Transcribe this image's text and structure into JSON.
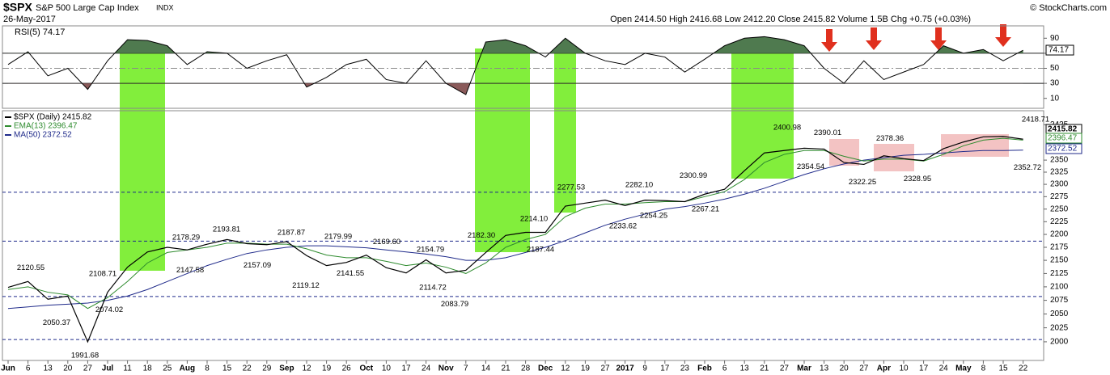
{
  "header": {
    "symbol": "$SPX",
    "name": "S&P 500 Large Cap Index",
    "exchange": "INDX",
    "date": "26-May-2017",
    "quote": "Open 2414.50  High 2416.68  Low 2412.20  Close 2415.82  Volume 1.5B  Chg +0.75 (+0.03%)",
    "credit": "© StockCharts.com"
  },
  "chart_data": [
    {
      "type": "line",
      "title": "RSI(5) 74.17",
      "color": "#000000",
      "ylim": [
        0,
        100
      ],
      "yticks": [
        10,
        30,
        50,
        70,
        90
      ],
      "reference_lines": [
        30,
        50,
        70
      ],
      "overbought_color": "#4f7a4f",
      "oversold_color": "#8a5a5a",
      "last_value": 74.17,
      "values": [
        55,
        72,
        40,
        50,
        22,
        60,
        88,
        87,
        80,
        55,
        72,
        70,
        50,
        60,
        68,
        25,
        38,
        55,
        62,
        35,
        30,
        60,
        30,
        15,
        85,
        88,
        80,
        65,
        90,
        70,
        60,
        55,
        70,
        65,
        45,
        62,
        80,
        90,
        92,
        88,
        80,
        50,
        30,
        60,
        35,
        45,
        55,
        80,
        70,
        75,
        60,
        74
      ]
    },
    {
      "type": "line",
      "log_scale": true,
      "ylim": [
        1970,
        2450
      ],
      "yticks": [
        2000,
        2025,
        2050,
        2075,
        2100,
        2125,
        2150,
        2175,
        2200,
        2225,
        2250,
        2275,
        2300,
        2325,
        2350,
        2425
      ],
      "categories": [
        "Jun",
        "6",
        "13",
        "20",
        "27",
        "Jul",
        "11",
        "18",
        "25",
        "Aug",
        "8",
        "15",
        "22",
        "29",
        "Sep",
        "12",
        "19",
        "26",
        "Oct",
        "10",
        "17",
        "24",
        "Nov",
        "7",
        "14",
        "21",
        "28",
        "Dec",
        "12",
        "19",
        "27",
        "2017",
        "9",
        "17",
        "23",
        "Feb",
        "6",
        "13",
        "21",
        "27",
        "Mar",
        "13",
        "20",
        "27",
        "Apr",
        "10",
        "17",
        "24",
        "May",
        "8",
        "15",
        "22"
      ],
      "series": [
        {
          "name": "$SPX (Daily) 2415.82",
          "color": "#000000",
          "values": [
            2099,
            2110,
            2077,
            2083,
            2000,
            2090,
            2137,
            2166,
            2175,
            2170,
            2181,
            2190,
            2182,
            2180,
            2186,
            2159,
            2140,
            2146,
            2160,
            2136,
            2126,
            2151,
            2126,
            2131,
            2165,
            2198,
            2204,
            2204,
            2256,
            2262,
            2268,
            2257,
            2268,
            2267,
            2265,
            2280,
            2290,
            2328,
            2365,
            2370,
            2375,
            2373,
            2345,
            2341,
            2359,
            2353,
            2349,
            2374,
            2388,
            2399,
            2400,
            2394
          ]
        },
        {
          "name": "EMA(13) 2396.47",
          "color": "#2e8b2e",
          "values": [
            2095,
            2100,
            2090,
            2085,
            2060,
            2080,
            2110,
            2145,
            2165,
            2170,
            2175,
            2183,
            2183,
            2181,
            2181,
            2172,
            2160,
            2155,
            2155,
            2148,
            2140,
            2145,
            2137,
            2125,
            2145,
            2175,
            2190,
            2200,
            2235,
            2252,
            2260,
            2260,
            2263,
            2265,
            2265,
            2275,
            2285,
            2310,
            2345,
            2362,
            2370,
            2370,
            2358,
            2348,
            2352,
            2352,
            2348,
            2362,
            2380,
            2392,
            2396,
            2392
          ]
        },
        {
          "name": "MA(50) 2372.52",
          "color": "#1f2a8a",
          "values": [
            2060,
            2063,
            2066,
            2068,
            2070,
            2075,
            2083,
            2095,
            2110,
            2125,
            2140,
            2152,
            2163,
            2170,
            2175,
            2178,
            2178,
            2176,
            2174,
            2170,
            2166,
            2162,
            2157,
            2150,
            2150,
            2155,
            2165,
            2175,
            2188,
            2203,
            2218,
            2230,
            2240,
            2250,
            2255,
            2262,
            2270,
            2280,
            2292,
            2306,
            2320,
            2332,
            2342,
            2350,
            2355,
            2360,
            2362,
            2365,
            2368,
            2370,
            2370,
            2371
          ]
        }
      ],
      "last_values": [
        2415.82,
        2396.47,
        2372.52
      ],
      "support_lines": [
        2004,
        2082,
        2187,
        2284
      ],
      "support_color": "#1f2a8a",
      "price_labels": [
        2120.55,
        2050.37,
        1991.68,
        2108.71,
        2074.02,
        2178.29,
        2147.58,
        2193.81,
        2157.09,
        2187.87,
        2119.12,
        2179.99,
        2141.55,
        {
          "value": 2169.6,
          "label": "2169.60"
        },
        2114.72,
        2154.79,
        2083.79,
        {
          "value": 2182.3,
          "label": "2182.30"
        },
        2187.44,
        {
          "value": 2214.1,
          "label": "2214.10"
        },
        2277.53,
        2233.62,
        {
          "value": 2282.1,
          "label": "2282.10"
        },
        2254.25,
        2300.99,
        2267.21,
        2400.98,
        2354.54,
        2390.01,
        2322.25,
        2378.36,
        2328.95,
        2352.72,
        2418.71
      ]
    }
  ]
}
